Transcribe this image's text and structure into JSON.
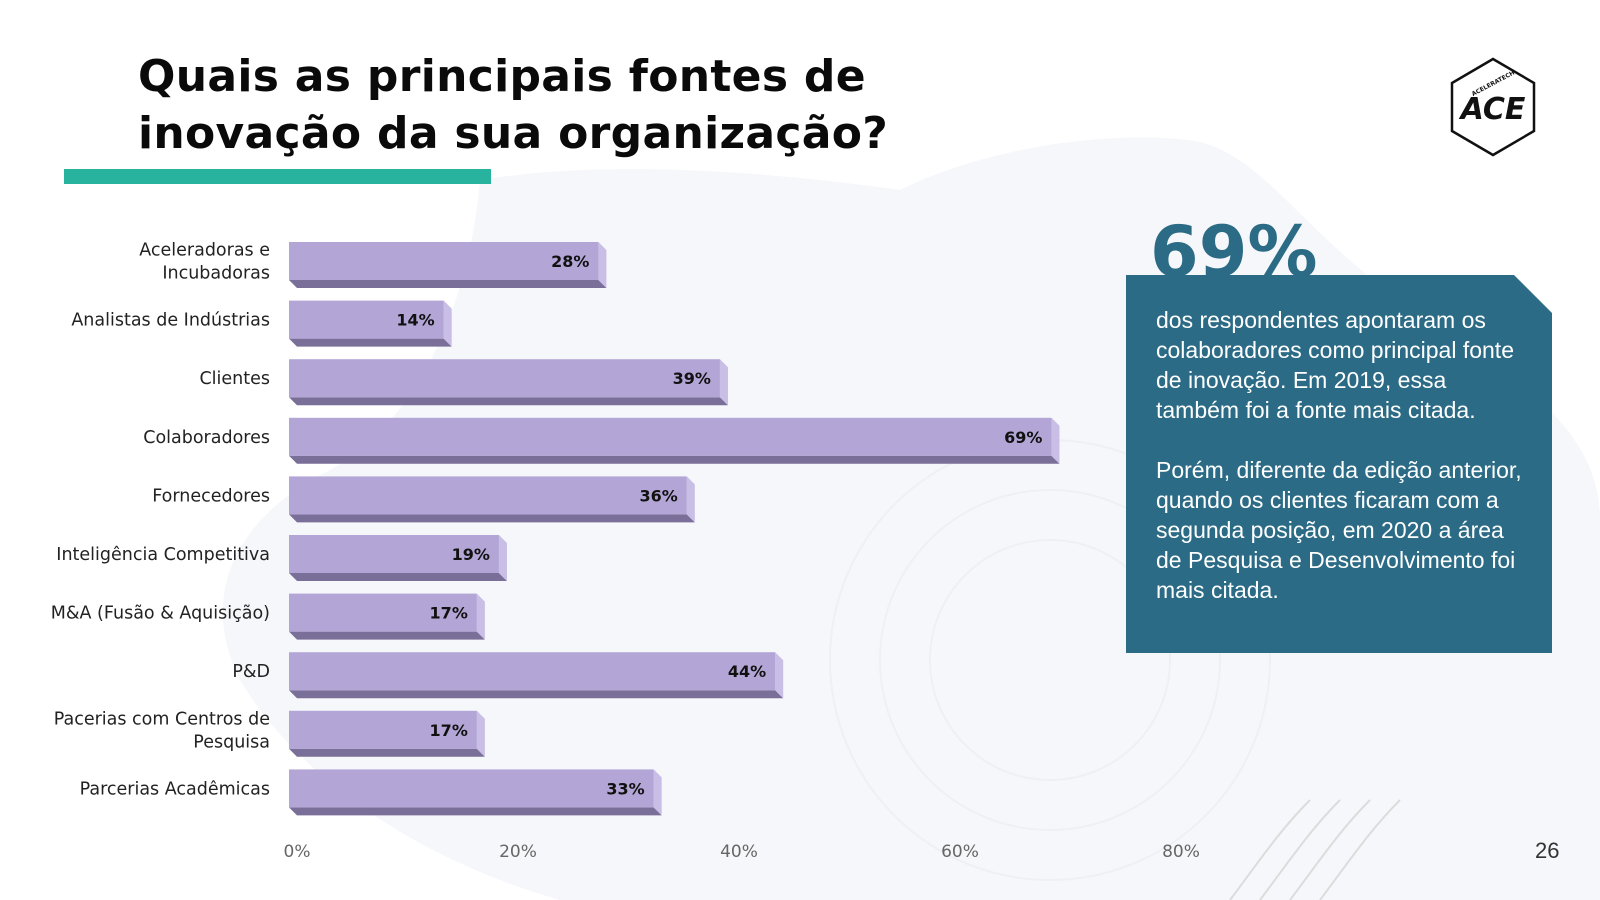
{
  "slide": {
    "title_line1": "Quais as principais fontes de",
    "title_line2": "inovação da sua organização?",
    "page_number": "26",
    "accent_color": "#27b39d"
  },
  "logo": {
    "text": "ACE",
    "small_text": "ACELERATECH",
    "icon": "hexagon-logo-icon"
  },
  "highlight": {
    "big_number": "69%",
    "paragraph1": "dos respondentes apontaram os colaboradores como principal fonte de inovação. Em 2019, essa também foi a fonte mais citada.",
    "paragraph2": "Porém, diferente da edição anterior, quando os clientes ficaram com a segunda posição, em 2020 a área de Pesquisa e Desenvolvimento foi mais citada.",
    "box_color": "#2b6b86"
  },
  "chart_data": {
    "type": "bar",
    "orientation": "horizontal",
    "categories": [
      [
        "Aceleradoras e",
        "Incubadoras"
      ],
      [
        "Analistas de Indústrias"
      ],
      [
        "Clientes"
      ],
      [
        "Colaboradores"
      ],
      [
        "Fornecedores"
      ],
      [
        "Inteligência Competitiva"
      ],
      [
        "M&A (Fusão & Aquisição)"
      ],
      [
        "P&D"
      ],
      [
        "Pacerias com Centros de",
        "Pesquisa"
      ],
      [
        "Parcerias Acadêmicas"
      ]
    ],
    "values": [
      28,
      14,
      39,
      69,
      36,
      19,
      17,
      44,
      17,
      33
    ],
    "value_labels": [
      "28%",
      "14%",
      "39%",
      "69%",
      "36%",
      "19%",
      "17%",
      "44%",
      "17%",
      "33%"
    ],
    "x_ticks": [
      0,
      20,
      40,
      60,
      80
    ],
    "x_tick_labels": [
      "0%",
      "20%",
      "40%",
      "60%",
      "80%"
    ],
    "xlim": [
      0,
      80
    ],
    "bar_color": "#b3a6d7",
    "bar_side_color": "#c8bee6",
    "bar_bottom_color": "#7a6f98",
    "grid": false,
    "legend": "none"
  }
}
